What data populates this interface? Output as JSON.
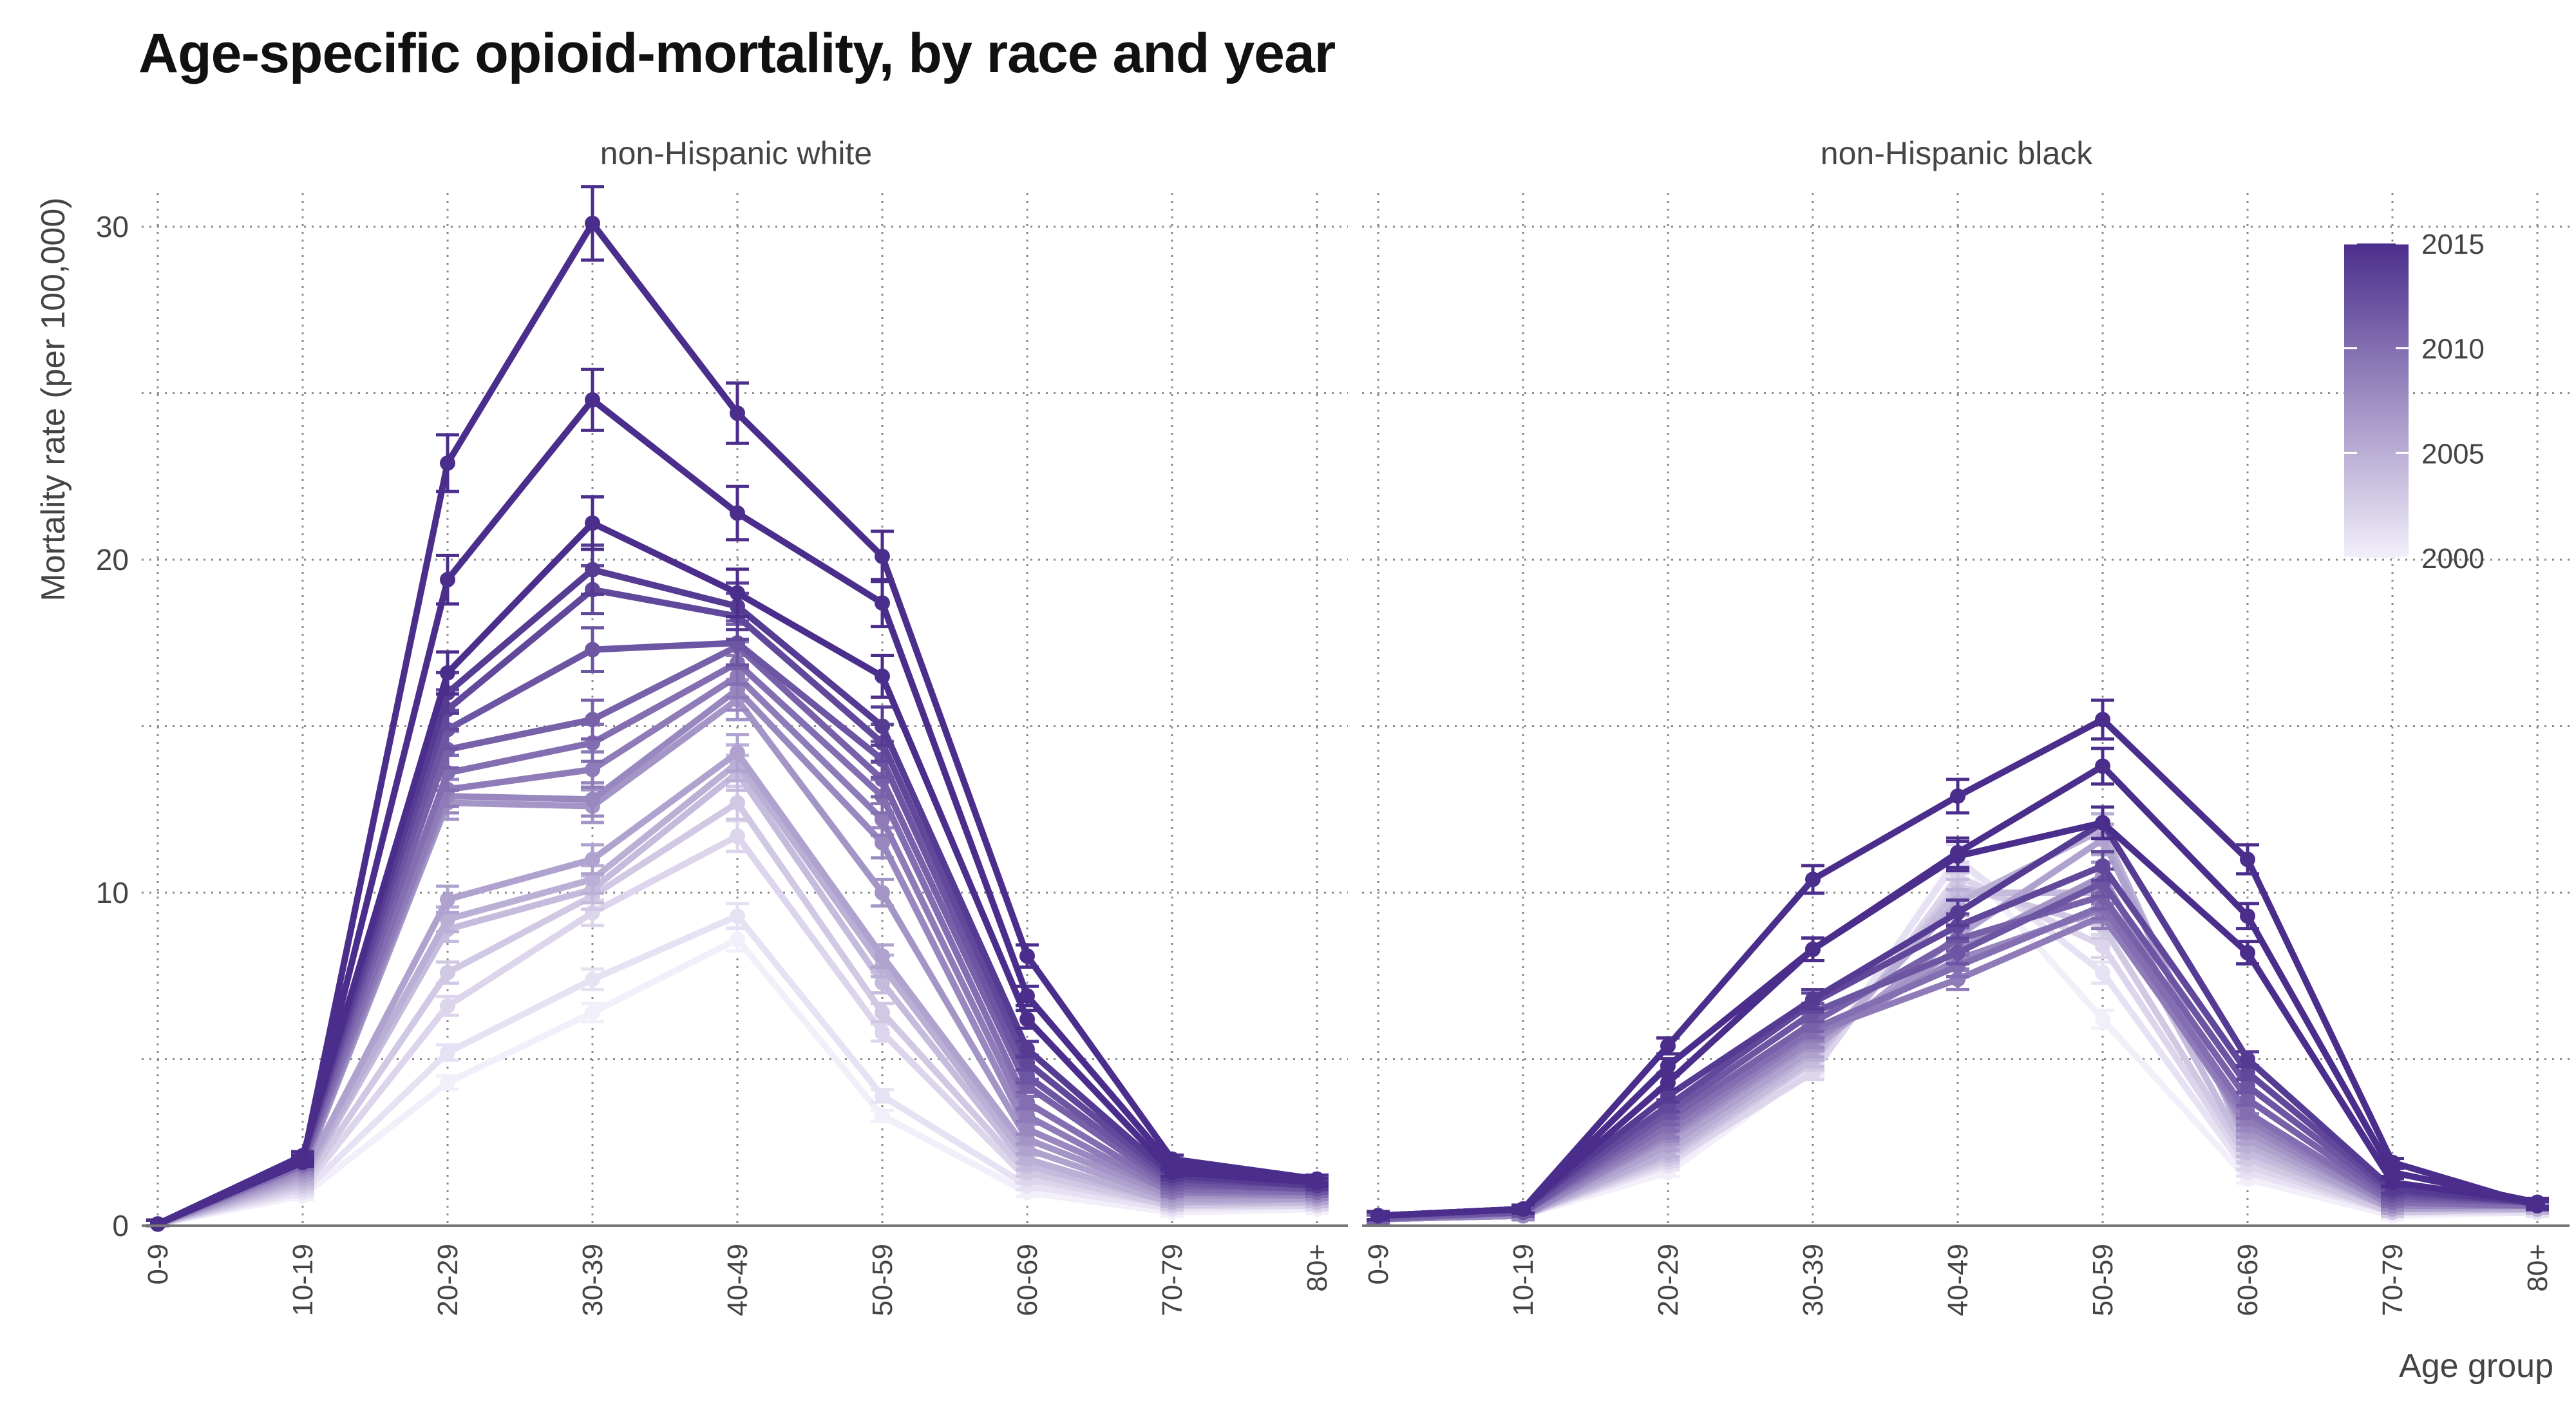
{
  "title": "Age-specific opioid-mortality, by race and year",
  "chart_data": {
    "type": "line",
    "title": "Age-specific opioid-mortality, by race and year",
    "xlabel": "Age group",
    "ylabel": "Mortality rate (per 100,000)",
    "ylim": [
      0,
      30
    ],
    "yticks": [
      "0",
      "10",
      "20",
      "30"
    ],
    "categories": [
      "0-9",
      "10-19",
      "20-29",
      "30-39",
      "40-49",
      "50-59",
      "60-69",
      "70-79",
      "80+"
    ],
    "grid": true,
    "legend": {
      "placement": "top-right",
      "type": "colorbar",
      "title": "",
      "labels": [
        "2015",
        "2010",
        "2005",
        "2000"
      ],
      "range": [
        2000,
        2015
      ],
      "color_low": "#f2effa",
      "color_high": "#4b2e8c"
    },
    "panels": [
      {
        "name": "non-Hispanic white",
        "series": [
          {
            "year": 2000,
            "values": [
              0.05,
              0.9,
              4.3,
              6.4,
              8.6,
              3.3,
              1.0,
              0.4,
              0.5
            ]
          },
          {
            "year": 2001,
            "values": [
              0.05,
              1.0,
              5.2,
              7.4,
              9.3,
              3.9,
              1.2,
              0.5,
              0.6
            ]
          },
          {
            "year": 2002,
            "values": [
              0.05,
              1.1,
              6.6,
              9.4,
              11.7,
              5.8,
              1.4,
              0.6,
              0.6
            ]
          },
          {
            "year": 2003,
            "values": [
              0.05,
              1.2,
              7.6,
              9.9,
              12.7,
              6.4,
              1.6,
              0.6,
              0.7
            ]
          },
          {
            "year": 2004,
            "values": [
              0.05,
              1.3,
              8.9,
              10.1,
              13.6,
              7.3,
              1.8,
              0.7,
              0.7
            ]
          },
          {
            "year": 2005,
            "values": [
              0.05,
              1.4,
              9.2,
              10.4,
              13.9,
              7.8,
              2.0,
              0.7,
              0.8
            ]
          },
          {
            "year": 2006,
            "values": [
              0.05,
              1.5,
              9.8,
              11.0,
              14.2,
              8.1,
              2.3,
              0.8,
              0.8
            ]
          },
          {
            "year": 2007,
            "values": [
              0.05,
              1.6,
              12.7,
              12.6,
              15.8,
              10.0,
              2.6,
              0.9,
              0.9
            ]
          },
          {
            "year": 2008,
            "values": [
              0.05,
              1.7,
              12.9,
              12.8,
              16.1,
              11.5,
              2.9,
              1.0,
              0.9
            ]
          },
          {
            "year": 2009,
            "values": [
              0.05,
              1.8,
              13.1,
              13.7,
              16.5,
              12.2,
              3.3,
              1.0,
              1.0
            ]
          },
          {
            "year": 2010,
            "values": [
              0.05,
              1.8,
              13.6,
              14.5,
              16.9,
              12.9,
              3.7,
              1.1,
              1.0
            ]
          },
          {
            "year": 2011,
            "values": [
              0.05,
              1.9,
              14.3,
              15.2,
              17.4,
              13.4,
              4.2,
              1.2,
              1.1
            ]
          },
          {
            "year": 2012,
            "values": [
              0.05,
              2.0,
              14.9,
              17.3,
              17.5,
              14.0,
              4.5,
              1.3,
              1.1
            ]
          },
          {
            "year": 2013,
            "values": [
              0.05,
              2.0,
              15.5,
              19.1,
              18.3,
              14.5,
              4.9,
              1.4,
              1.2
            ]
          },
          {
            "year": 2014,
            "values": [
              0.05,
              2.1,
              16.0,
              19.7,
              18.6,
              15.0,
              5.3,
              1.5,
              1.2
            ]
          },
          {
            "year": 2015,
            "values": [
              0.05,
              2.1,
              16.6,
              21.1,
              19.0,
              16.5,
              6.2,
              1.6,
              1.3
            ]
          },
          {
            "year": 2016,
            "values": [
              0.05,
              2.0,
              19.4,
              24.8,
              21.4,
              18.7,
              6.9,
              1.8,
              1.3
            ]
          },
          {
            "year": 2017,
            "values": [
              0.05,
              1.9,
              22.9,
              30.1,
              24.4,
              20.1,
              8.1,
              2.0,
              1.4
            ]
          }
        ]
      },
      {
        "name": "non-Hispanic black",
        "series": [
          {
            "year": 2000,
            "values": [
              0.2,
              0.3,
              1.6,
              4.7,
              11.1,
              6.2,
              1.4,
              0.3,
              0.4
            ]
          },
          {
            "year": 2001,
            "values": [
              0.2,
              0.3,
              1.8,
              4.8,
              11.0,
              7.6,
              1.6,
              0.4,
              0.4
            ]
          },
          {
            "year": 2002,
            "values": [
              0.2,
              0.3,
              1.9,
              4.6,
              10.5,
              8.4,
              1.8,
              0.4,
              0.5
            ]
          },
          {
            "year": 2003,
            "values": [
              0.2,
              0.3,
              2.0,
              4.9,
              10.2,
              9.0,
              2.0,
              0.4,
              0.5
            ]
          },
          {
            "year": 2004,
            "values": [
              0.2,
              0.3,
              2.1,
              5.0,
              10.0,
              10.0,
              2.2,
              0.5,
              0.5
            ]
          },
          {
            "year": 2005,
            "values": [
              0.2,
              0.3,
              2.2,
              5.2,
              9.7,
              11.9,
              2.4,
              0.5,
              0.5
            ]
          },
          {
            "year": 2006,
            "values": [
              0.2,
              0.3,
              2.4,
              5.3,
              8.7,
              11.6,
              2.6,
              0.5,
              0.6
            ]
          },
          {
            "year": 2007,
            "values": [
              0.2,
              0.3,
              2.6,
              5.5,
              8.3,
              10.5,
              2.8,
              0.6,
              0.6
            ]
          },
          {
            "year": 2008,
            "values": [
              0.2,
              0.3,
              2.7,
              5.6,
              8.0,
              9.5,
              3.0,
              0.6,
              0.6
            ]
          },
          {
            "year": 2009,
            "values": [
              0.2,
              0.4,
              2.8,
              5.8,
              7.4,
              9.3,
              3.2,
              0.7,
              0.6
            ]
          },
          {
            "year": 2010,
            "values": [
              0.2,
              0.4,
              3.0,
              5.9,
              7.8,
              9.6,
              3.4,
              0.7,
              0.6
            ]
          },
          {
            "year": 2011,
            "values": [
              0.2,
              0.4,
              3.2,
              6.1,
              8.6,
              9.9,
              3.8,
              0.8,
              0.7
            ]
          },
          {
            "year": 2012,
            "values": [
              0.3,
              0.4,
              3.4,
              6.4,
              8.2,
              10.3,
              4.2,
              0.9,
              0.7
            ]
          },
          {
            "year": 2013,
            "values": [
              0.3,
              0.5,
              3.6,
              6.7,
              9.0,
              10.8,
              4.6,
              1.0,
              0.7
            ]
          },
          {
            "year": 2014,
            "values": [
              0.3,
              0.5,
              3.9,
              6.8,
              9.4,
              12.1,
              5.0,
              1.1,
              0.7
            ]
          },
          {
            "year": 2015,
            "values": [
              0.3,
              0.5,
              4.3,
              8.3,
              11.1,
              12.1,
              8.2,
              1.3,
              0.7
            ]
          },
          {
            "year": 2016,
            "values": [
              0.3,
              0.5,
              4.8,
              8.3,
              11.2,
              13.8,
              9.3,
              1.6,
              0.7
            ]
          },
          {
            "year": 2017,
            "values": [
              0.3,
              0.5,
              5.4,
              10.4,
              12.9,
              15.2,
              11.0,
              1.9,
              0.6
            ]
          }
        ]
      }
    ]
  }
}
